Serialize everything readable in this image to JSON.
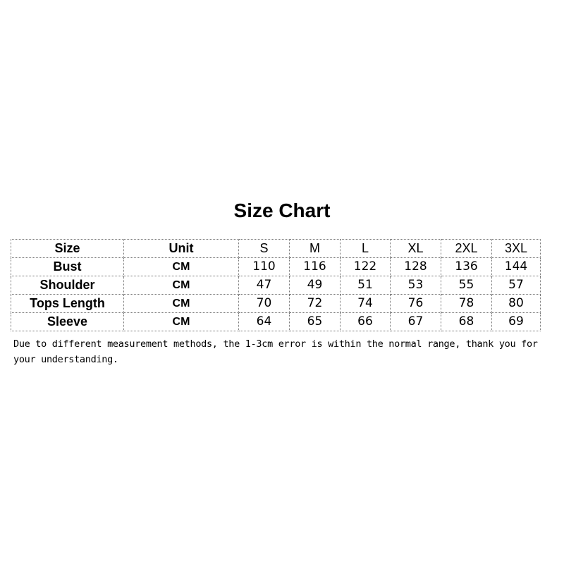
{
  "title": "Size Chart",
  "header": {
    "label": "Size",
    "unit": "Unit",
    "sizes": [
      "S",
      "M",
      "L",
      "XL",
      "2XL",
      "3XL"
    ]
  },
  "rows": [
    {
      "label": "Bust",
      "unit": "CM",
      "values": [
        "110",
        "116",
        "122",
        "128",
        "136",
        "144"
      ]
    },
    {
      "label": "Shoulder",
      "unit": "CM",
      "values": [
        "47",
        "49",
        "51",
        "53",
        "55",
        "57"
      ]
    },
    {
      "label": "Tops Length",
      "unit": "CM",
      "values": [
        "70",
        "72",
        "74",
        "76",
        "78",
        "80"
      ]
    },
    {
      "label": "Sleeve",
      "unit": "CM",
      "values": [
        "64",
        "65",
        "66",
        "67",
        "68",
        "69"
      ]
    }
  ],
  "note": "Due to different measurement methods, the 1-3cm error is within the normal range, thank you for your understanding."
}
